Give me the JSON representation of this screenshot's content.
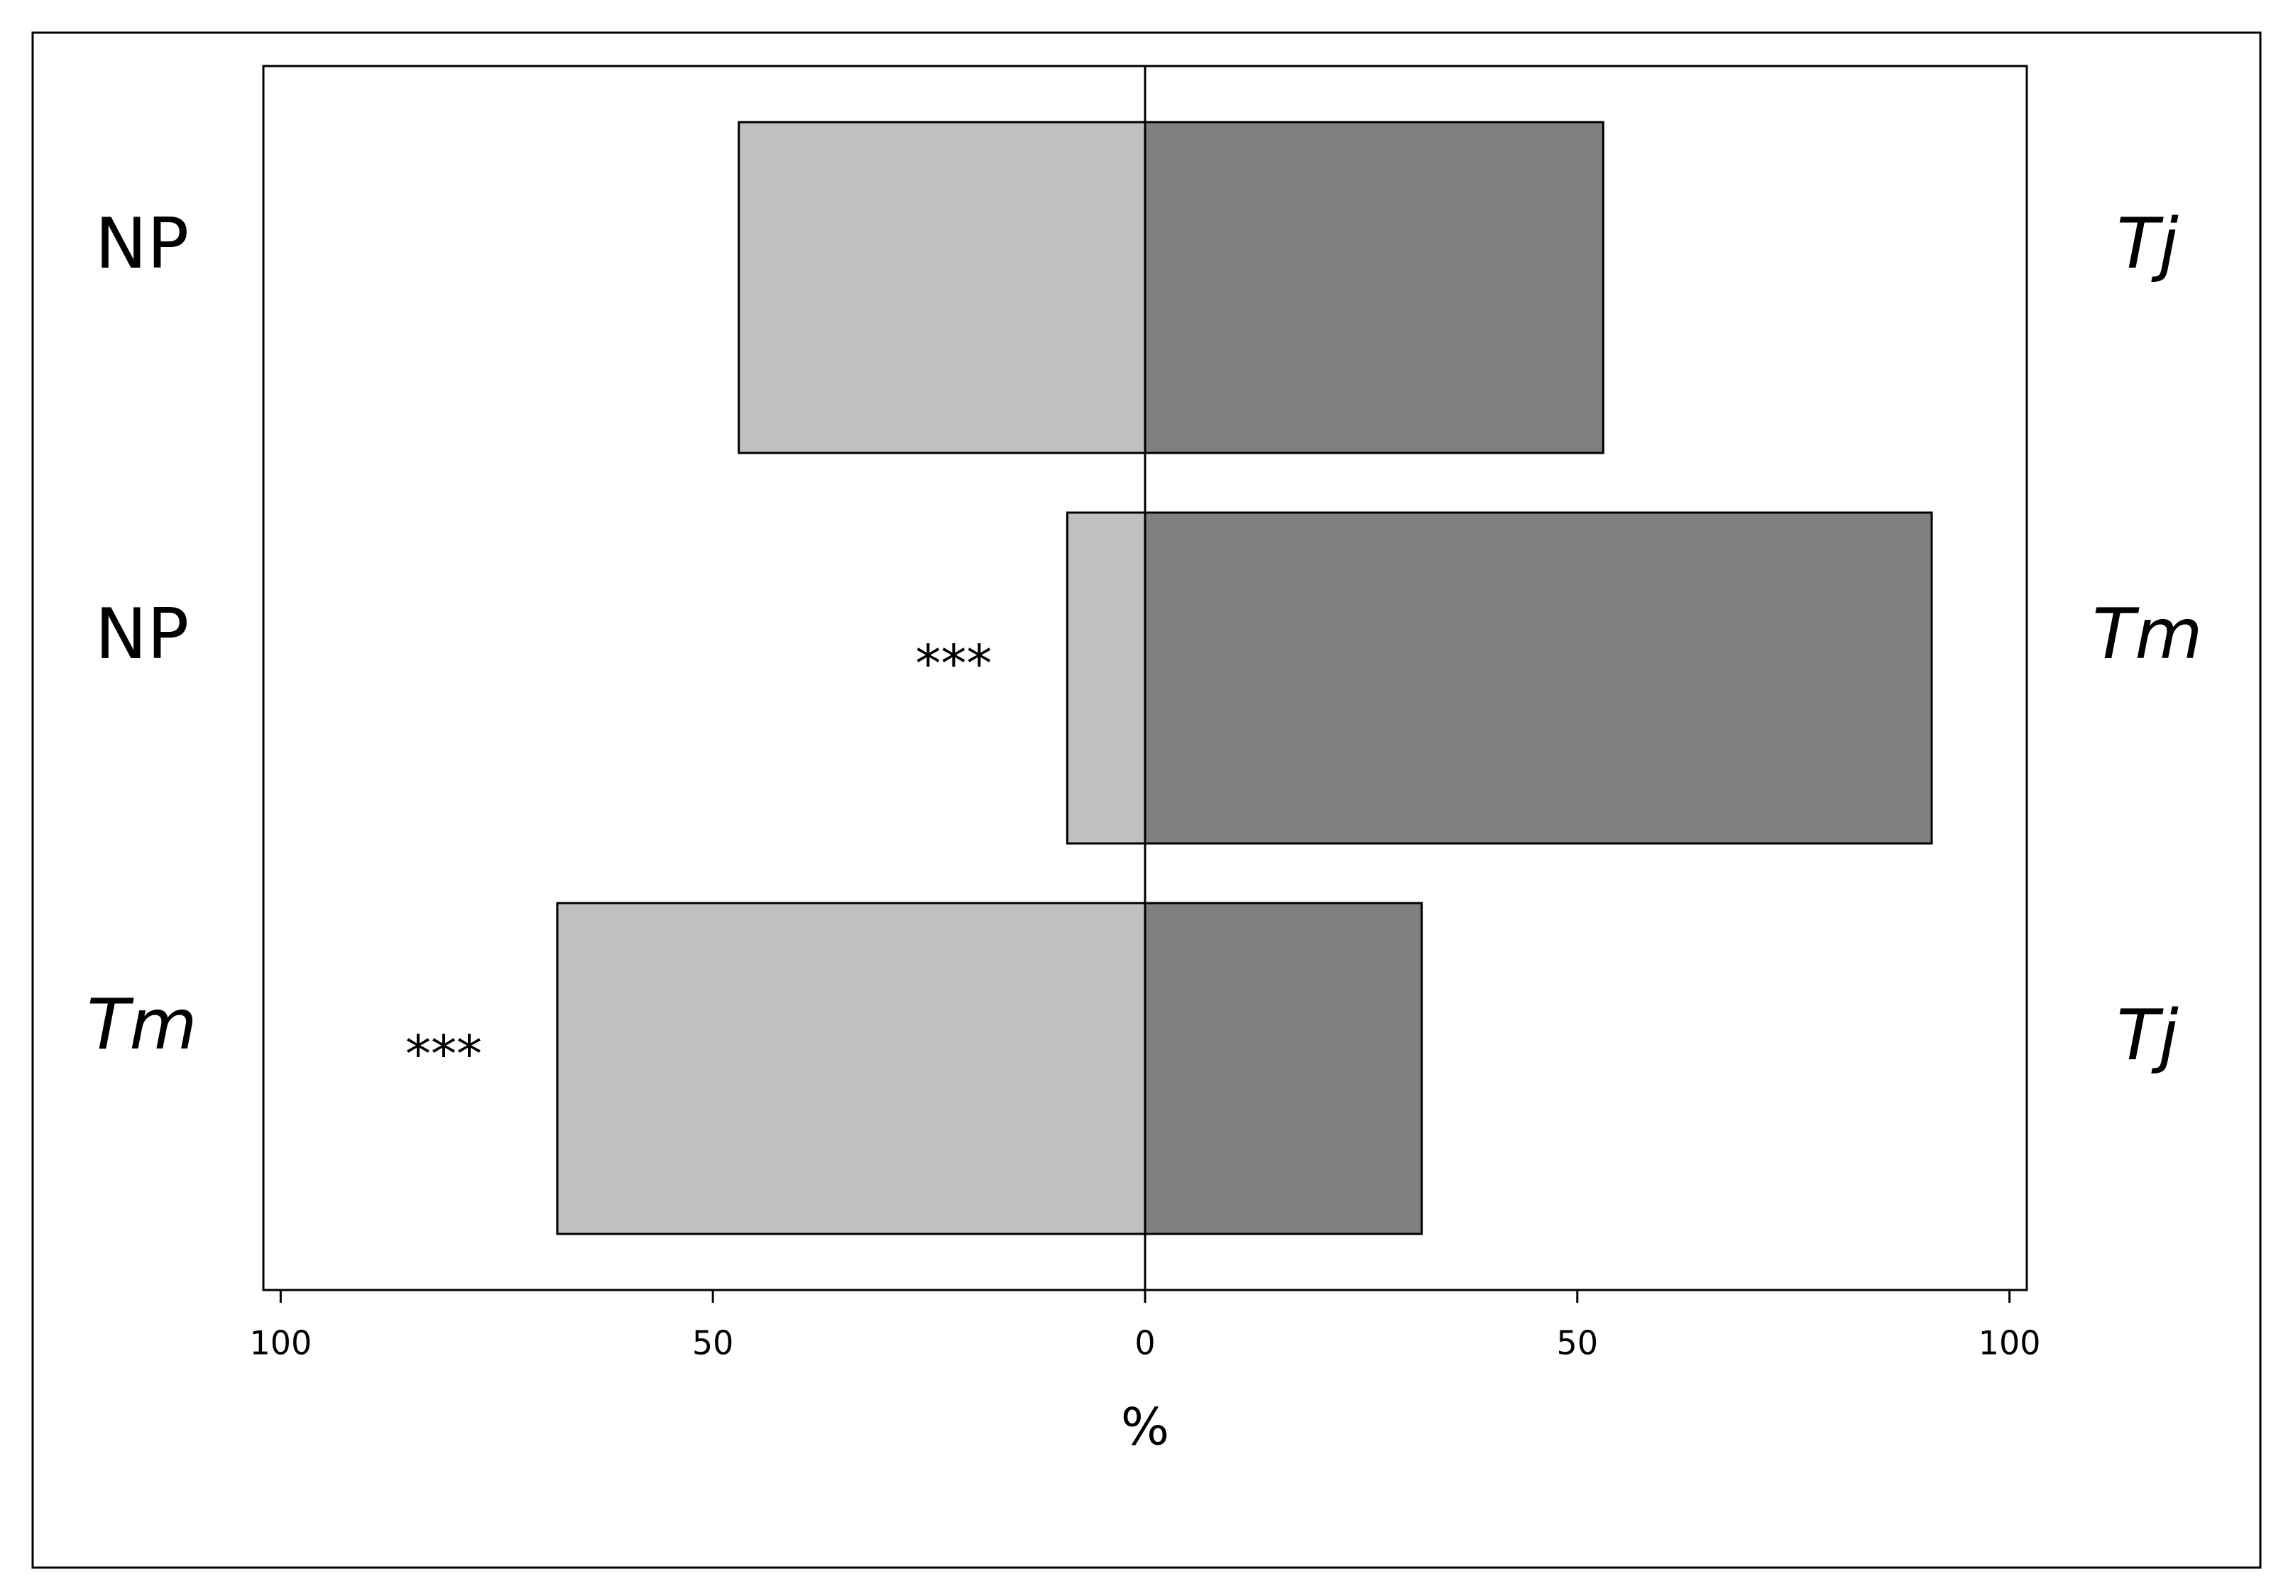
{
  "chart_data": {
    "type": "diverging-bar",
    "left_categories": [
      "NP",
      "NP",
      "Tm"
    ],
    "right_categories": [
      "Tj",
      "Tm",
      "Tj"
    ],
    "left_label_italic": [
      false,
      false,
      true
    ],
    "right_label_italic": [
      true,
      true,
      true
    ],
    "series": [
      {
        "color": "#c0c0c0",
        "values": [
          -47,
          -9,
          -68
        ]
      },
      {
        "color": "#808080",
        "values": [
          53,
          91,
          32
        ]
      }
    ],
    "significance": [
      null,
      "***",
      "***"
    ],
    "xlabel": "%",
    "xlim": [
      -102,
      102
    ],
    "xticks": [
      {
        "value": -100,
        "label": "100"
      },
      {
        "value": -50,
        "label": "50"
      },
      0,
      50,
      100
    ]
  }
}
